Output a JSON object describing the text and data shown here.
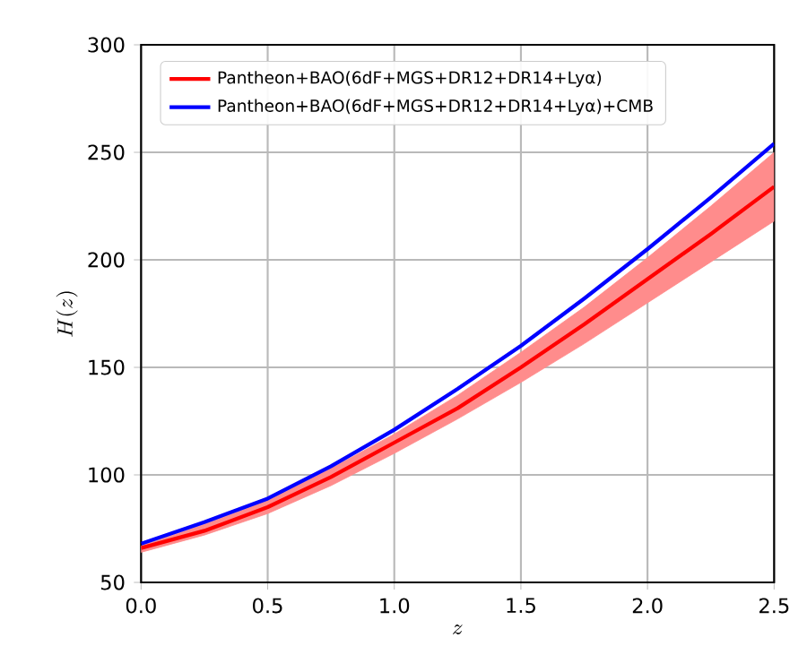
{
  "chart_data": {
    "type": "line",
    "xlabel": "z",
    "ylabel": "H(z)",
    "x": [
      0,
      0.25,
      0.5,
      0.75,
      1,
      1.25,
      1.5,
      1.75,
      2,
      2.25,
      2.5
    ],
    "series": [
      {
        "name": "Pantheon+BAO(6dF+MGS+DR12+DR14+Lyα)",
        "color": "#ff0000",
        "values": [
          66,
          74,
          85,
          99,
          115,
          131,
          150,
          170,
          191,
          212,
          234
        ],
        "lower": [
          64,
          72,
          82,
          95,
          110,
          126,
          143,
          161,
          180,
          199,
          218
        ],
        "upper": [
          67,
          77,
          88,
          103,
          119,
          137,
          157,
          178,
          201,
          225,
          250
        ]
      },
      {
        "name": "Pantheon+BAO(6dF+MGS+DR12+DR14+Lyα)+CMB",
        "color": "#0000ff",
        "values": [
          68,
          78,
          89,
          104,
          121,
          140,
          160,
          182,
          205,
          229,
          254
        ]
      }
    ],
    "xlim": [
      0,
      2.5
    ],
    "ylim": [
      50,
      300
    ],
    "xticks": [
      {
        "value": 0,
        "label": "0.0"
      },
      {
        "value": 0.5,
        "label": "0.5"
      },
      {
        "value": 1,
        "label": "1.0"
      },
      {
        "value": 1.5,
        "label": "1.5"
      },
      {
        "value": 2,
        "label": "2.0"
      },
      {
        "value": 2.5,
        "label": "2.5"
      }
    ],
    "yticks": [
      50,
      100,
      150,
      200,
      250,
      300
    ],
    "grid": true,
    "legend": "top left"
  }
}
